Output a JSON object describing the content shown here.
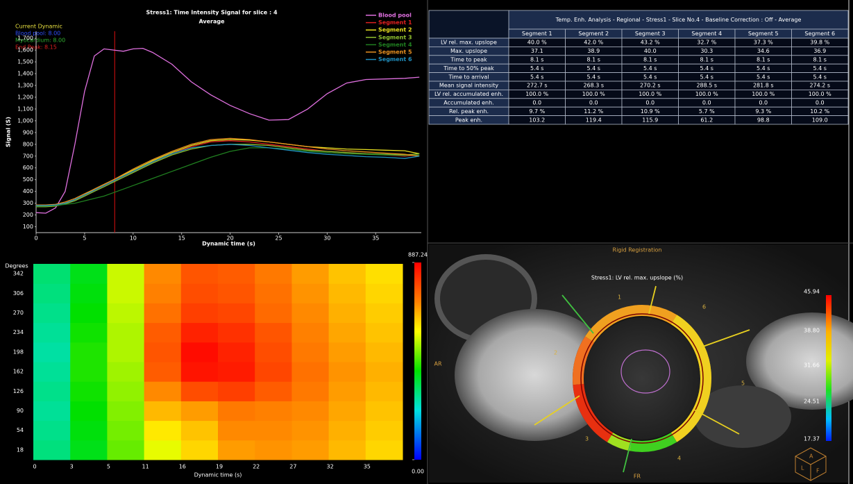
{
  "chart_data": [
    {
      "type": "line",
      "title": "Stress1: Time Intensity Signal for slice : 4",
      "subtitle": "Average",
      "xlabel": "Dynamic time (s)",
      "ylabel": "Signal (S)",
      "annotations": [
        {
          "text": "Current Dynamic",
          "color": "#e8e040"
        },
        {
          "text": "Blood pool: 8.00",
          "color": "#3050ff"
        },
        {
          "text": "Myocardium: 8.00",
          "color": "#30b030"
        },
        {
          "text": "End Peak: 8.15",
          "color": "#e02020"
        }
      ],
      "current_dynamic_x": 8.1,
      "current_dynamic_color": "#e01010",
      "x": [
        0,
        1,
        2,
        3,
        4,
        5,
        6,
        7,
        8,
        9,
        10,
        11,
        12,
        14,
        16,
        18,
        20,
        22,
        24,
        26,
        28,
        30,
        32,
        34,
        36,
        38,
        39.5
      ],
      "xlim": [
        0,
        39.7
      ],
      "xticks": [
        0,
        5,
        10,
        15,
        20,
        25,
        30,
        35
      ],
      "ylim": [
        50,
        1760
      ],
      "yticks": [
        100,
        200,
        300,
        400,
        500,
        600,
        700,
        800,
        900,
        {
          "value": 1000,
          "label": "1,000"
        },
        {
          "value": 1100,
          "label": "1,100"
        },
        {
          "value": 1200,
          "label": "1,200"
        },
        {
          "value": 1300,
          "label": "1,300"
        },
        {
          "value": 1400,
          "label": "1,400"
        },
        {
          "value": 1500,
          "label": "1,500"
        },
        {
          "value": 1600,
          "label": "1,600"
        },
        {
          "value": 1700,
          "label": "1,700"
        }
      ],
      "series": [
        {
          "name": "Blood pool",
          "color": "#e070e0",
          "values": [
            220,
            215,
            260,
            400,
            800,
            1250,
            1550,
            1610,
            1600,
            1590,
            1610,
            1615,
            1580,
            1480,
            1330,
            1220,
            1130,
            1060,
            1005,
            1010,
            1100,
            1230,
            1320,
            1350,
            1355,
            1360,
            1370
          ]
        },
        {
          "name": "Segment 1",
          "color": "#e02020",
          "values": [
            280,
            280,
            285,
            300,
            330,
            370,
            410,
            450,
            490,
            530,
            570,
            610,
            650,
            720,
            780,
            820,
            830,
            820,
            800,
            780,
            760,
            740,
            730,
            720,
            710,
            700,
            710
          ]
        },
        {
          "name": "Segment 2",
          "color": "#e8e020",
          "values": [
            275,
            275,
            280,
            300,
            330,
            370,
            420,
            460,
            500,
            540,
            580,
            620,
            660,
            730,
            790,
            830,
            840,
            835,
            820,
            800,
            780,
            770,
            760,
            755,
            750,
            745,
            720
          ]
        },
        {
          "name": "Segment 3",
          "color": "#90c030",
          "values": [
            270,
            270,
            275,
            295,
            320,
            360,
            400,
            440,
            480,
            520,
            560,
            600,
            640,
            710,
            760,
            790,
            800,
            800,
            790,
            770,
            750,
            740,
            730,
            720,
            715,
            710,
            720
          ]
        },
        {
          "name": "Segment 4",
          "color": "#208020",
          "values": [
            275,
            275,
            280,
            290,
            300,
            320,
            340,
            360,
            390,
            420,
            450,
            480,
            510,
            570,
            630,
            690,
            740,
            770,
            770,
            760,
            740,
            730,
            720,
            715,
            710,
            705,
            710
          ]
        },
        {
          "name": "Segment 5",
          "color": "#e89020",
          "values": [
            285,
            285,
            290,
            310,
            340,
            380,
            420,
            460,
            500,
            545,
            590,
            630,
            670,
            740,
            800,
            840,
            850,
            840,
            820,
            800,
            780,
            760,
            745,
            735,
            725,
            715,
            700
          ]
        },
        {
          "name": "Segment 6",
          "color": "#2090c0",
          "values": [
            280,
            280,
            285,
            300,
            330,
            370,
            410,
            450,
            490,
            530,
            570,
            610,
            650,
            720,
            770,
            790,
            800,
            790,
            770,
            750,
            730,
            715,
            705,
            695,
            690,
            680,
            700
          ]
        }
      ]
    },
    {
      "type": "heatmap",
      "xlabel": "Dynamic time (s)",
      "ylabel": "Degrees",
      "x_categories": [
        "0",
        "3",
        "5",
        "11",
        "16",
        "19",
        "22",
        "27",
        "32",
        "35"
      ],
      "y_categories": [
        "18",
        "54",
        "90",
        "126",
        "162",
        "198",
        "234",
        "270",
        "306",
        "342"
      ],
      "zlim": [
        0,
        887.24
      ],
      "colorbar_ticks": [
        887.24,
        {
          "value": 0,
          "label": "0.00"
        }
      ],
      "values": [
        [
          300,
          380,
          470,
          560,
          620,
          680,
          690,
          680,
          650,
          620
        ],
        [
          290,
          390,
          480,
          600,
          640,
          700,
          700,
          690,
          660,
          630
        ],
        [
          280,
          400,
          490,
          650,
          680,
          720,
          710,
          700,
          670,
          640
        ],
        [
          290,
          410,
          500,
          700,
          780,
          800,
          760,
          720,
          680,
          650
        ],
        [
          280,
          420,
          510,
          760,
          860,
          850,
          790,
          730,
          690,
          660
        ],
        [
          270,
          420,
          520,
          770,
          870,
          840,
          780,
          720,
          680,
          650
        ],
        [
          280,
          410,
          520,
          760,
          840,
          820,
          770,
          710,
          670,
          640
        ],
        [
          290,
          400,
          530,
          730,
          800,
          790,
          740,
          700,
          660,
          630
        ],
        [
          300,
          390,
          540,
          710,
          780,
          770,
          730,
          690,
          650,
          620
        ],
        [
          310,
          380,
          540,
          700,
          770,
          760,
          720,
          680,
          640,
          610
        ]
      ]
    }
  ],
  "table": {
    "title": "Temp. Enh. Analysis  - Regional - Stress1 - Slice No.4 - Baseline Correction : Off - Average",
    "columns": [
      "Segment 1",
      "Segment 2",
      "Segment 3",
      "Segment 4",
      "Segment 5",
      "Segment 6"
    ],
    "rows": [
      {
        "label": "LV rel. max. upslope",
        "cells": [
          "40.0 %",
          "42.0 %",
          "43.2 %",
          "32.7 %",
          "37.3 %",
          "39.8 %"
        ]
      },
      {
        "label": "Max. upslope",
        "cells": [
          "37.1",
          "38.9",
          "40.0",
          "30.3",
          "34.6",
          "36.9"
        ]
      },
      {
        "label": "Time to peak",
        "cells": [
          "8.1 s",
          "8.1 s",
          "8.1 s",
          "8.1 s",
          "8.1 s",
          "8.1 s"
        ]
      },
      {
        "label": "Time to 50% peak",
        "cells": [
          "5.4 s",
          "5.4 s",
          "5.4 s",
          "5.4 s",
          "5.4 s",
          "5.4 s"
        ]
      },
      {
        "label": "Time to arrival",
        "cells": [
          "5.4 s",
          "5.4 s",
          "5.4 s",
          "5.4 s",
          "5.4 s",
          "5.4 s"
        ]
      },
      {
        "label": "Mean signal intensity",
        "cells": [
          "272.7 s",
          "268.3 s",
          "270.2 s",
          "288.5 s",
          "281.8 s",
          "274.2 s"
        ]
      },
      {
        "label": "LV rel. accumulated enh.",
        "cells": [
          "100.0 %",
          "100.0 %",
          "100.0 %",
          "100.0 %",
          "100.0 %",
          "100.0 %"
        ]
      },
      {
        "label": "Accumulated enh.",
        "cells": [
          "0.0",
          "0.0",
          "0.0",
          "0.0",
          "0.0",
          "0.0"
        ]
      },
      {
        "label": "Rel. peak enh.",
        "cells": [
          "9.7 %",
          "11.2 %",
          "10.9 %",
          "5.7 %",
          "9.3 %",
          "10.2 %"
        ]
      },
      {
        "label": "Peak enh.",
        "cells": [
          "103.2",
          "119.4",
          "115.9",
          "61.2",
          "98.8",
          "109.0"
        ]
      }
    ]
  },
  "image_panel": {
    "title": "Rigid Registration",
    "subtitle": "Stress1: LV rel. max. upslope (%)",
    "side_labels": [
      "AR",
      "FR"
    ],
    "segment_labels": [
      "1",
      "2",
      "3",
      "4",
      "5",
      "6"
    ],
    "colorbar_labels": [
      "45.94",
      "38.80",
      "31.66",
      "24.51",
      "17.37"
    ],
    "cube_labels": [
      "A",
      "L",
      "F"
    ]
  }
}
